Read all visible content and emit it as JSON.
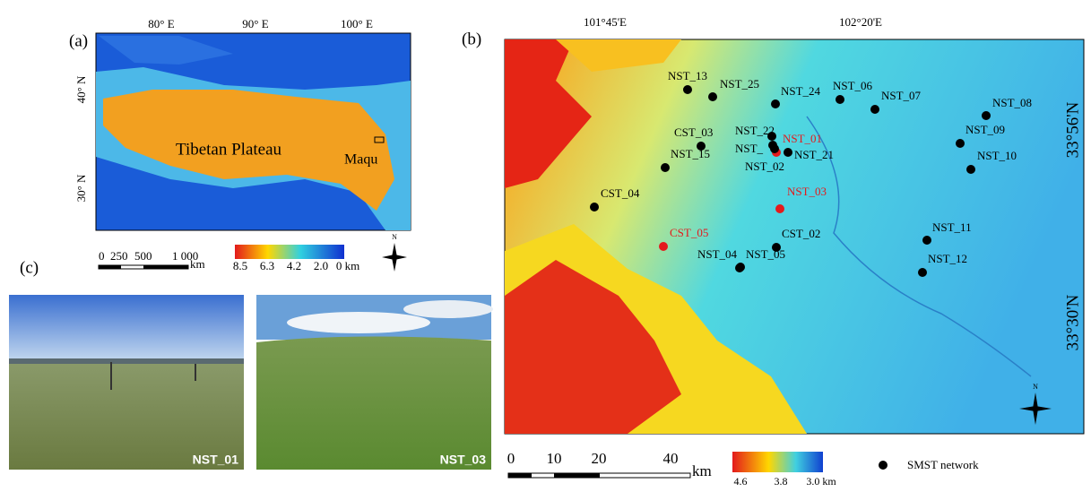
{
  "panel_a": {
    "label": "(a)",
    "lon_ticks": [
      "80° E",
      "90° E",
      "100° E"
    ],
    "lat_ticks": [
      "40° N",
      "30° N"
    ],
    "region_label": "Tibetan Plateau",
    "site_label": "Maqu",
    "scale_labels": [
      "0",
      "250",
      "500",
      "1 000",
      "km"
    ],
    "legend_labels": [
      "8.5",
      "6.3",
      "4.2",
      "2.0",
      "0 km"
    ]
  },
  "panel_b": {
    "label": "(b)",
    "lon_ticks": [
      "101°45'E",
      "102°20'E"
    ],
    "lat_ticks": [
      "33°56'N",
      "33°30'N"
    ],
    "scale_labels": [
      "0",
      "10",
      "20",
      "40",
      "km"
    ],
    "legend_labels": [
      "4.6",
      "3.8",
      "3.0 km"
    ],
    "network_legend": "SMST network",
    "stations": [
      {
        "label": "NST_13",
        "color": "#000"
      },
      {
        "label": "NST_25",
        "color": "#000"
      },
      {
        "label": "NST_24",
        "color": "#000"
      },
      {
        "label": "NST_06",
        "color": "#000"
      },
      {
        "label": "NST_07",
        "color": "#000"
      },
      {
        "label": "NST_08",
        "color": "#000"
      },
      {
        "label": "NST_09",
        "color": "#000"
      },
      {
        "label": "NST_10",
        "color": "#000"
      },
      {
        "label": "NST_11",
        "color": "#000"
      },
      {
        "label": "NST_12",
        "color": "#000"
      },
      {
        "label": "CST_03",
        "color": "#000"
      },
      {
        "label": "NST_22",
        "color": "#000"
      },
      {
        "label": "NST_",
        "color": "#000"
      },
      {
        "label": "NST_01",
        "color": "#e41a1c"
      },
      {
        "label": "NST_21",
        "color": "#000"
      },
      {
        "label": "NST_02",
        "color": "#000"
      },
      {
        "label": "NST_15",
        "color": "#000"
      },
      {
        "label": "CST_04",
        "color": "#000"
      },
      {
        "label": "NST_03",
        "color": "#e41a1c"
      },
      {
        "label": "CST_05",
        "color": "#e41a1c"
      },
      {
        "label": "CST_02",
        "color": "#000"
      },
      {
        "label": "NST_04",
        "color": "#000"
      },
      {
        "label": "NST_05",
        "color": "#000"
      }
    ]
  },
  "panel_c": {
    "label": "(c)",
    "photos": [
      {
        "label": "NST_01"
      },
      {
        "label": "NST_03"
      }
    ]
  }
}
